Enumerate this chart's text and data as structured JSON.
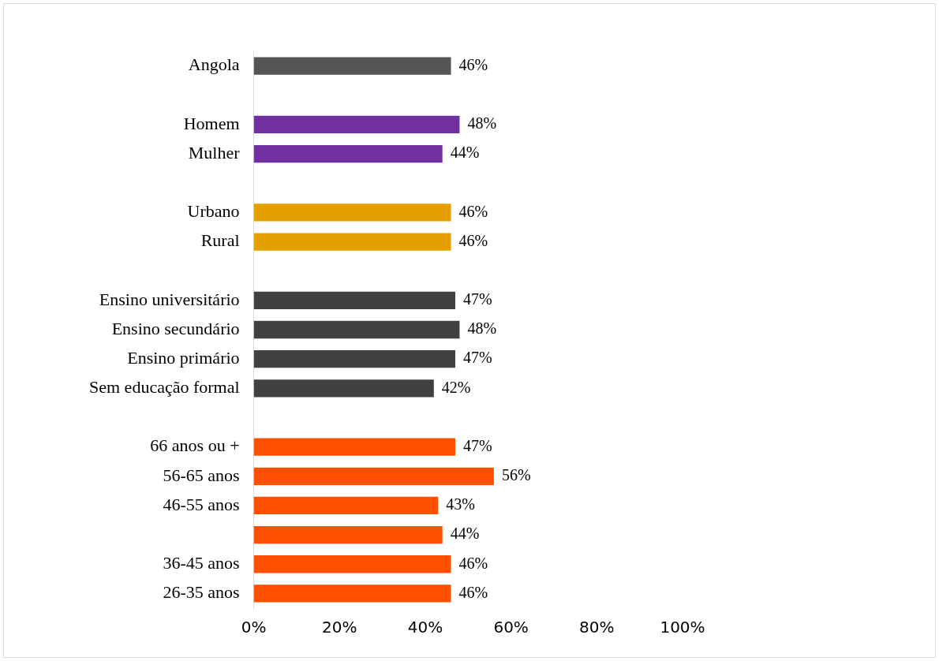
{
  "chart_data": {
    "type": "bar",
    "orientation": "horizontal",
    "categories": [
      "Angola",
      null,
      "Homem",
      "Mulher",
      null,
      "Urbano",
      "Rural",
      null,
      "Ensino universitário",
      "Ensino secundário",
      "Ensino primário",
      "Sem educação formal",
      null,
      "66 anos ou +",
      "56-65 anos",
      "46-55 anos",
      null,
      "36-45 anos",
      "26-35 anos"
    ],
    "values": [
      46,
      null,
      48,
      44,
      null,
      46,
      46,
      null,
      47,
      48,
      47,
      42,
      null,
      47,
      56,
      43,
      44,
      46,
      46
    ],
    "colors": [
      "#555555",
      "#ffffff",
      "#7030a0",
      "#7030a0",
      "#ffffff",
      "#e5a000",
      "#e5a000",
      "#ffffff",
      "#404040",
      "#404040",
      "#404040",
      "#404040",
      "#ffffff",
      "#ff5000",
      "#ff5000",
      "#ff5000",
      "#ff5000",
      "#ff5000",
      "#ff5000"
    ],
    "value_labels": [
      "46%",
      null,
      "48%",
      "44%",
      null,
      "46%",
      "46%",
      null,
      "47%",
      "48%",
      "47%",
      "42%",
      null,
      "47%",
      "56%",
      "43%",
      "44%",
      "46%",
      "46%"
    ],
    "xlim": [
      0,
      100
    ],
    "xticks": [
      {
        "value": 0,
        "label": "0%"
      },
      {
        "value": 20,
        "label": "20%"
      },
      {
        "value": 40,
        "label": "40%"
      },
      {
        "value": 60,
        "label": "60%"
      },
      {
        "value": 80,
        "label": "80%"
      },
      {
        "value": 100,
        "label": "100%"
      }
    ],
    "grid": false,
    "legend": false
  }
}
